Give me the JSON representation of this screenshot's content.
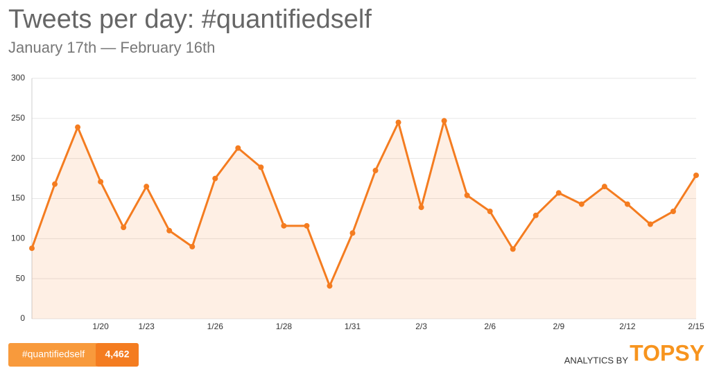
{
  "chart_data": {
    "type": "area",
    "title": "Tweets per day: #quantifiedself",
    "subtitle": "January 17th — February 16th",
    "categories": [
      null,
      null,
      null,
      "1/20",
      null,
      "1/23",
      null,
      null,
      "1/26",
      null,
      null,
      "1/28",
      null,
      null,
      "1/31",
      null,
      null,
      "2/3",
      null,
      null,
      "2/6",
      null,
      null,
      "2/9",
      null,
      null,
      "2/12",
      null,
      null,
      "2/15"
    ],
    "series": [
      {
        "name": "#quantifiedself",
        "color": "#f47c20",
        "values": [
          88,
          168,
          239,
          171,
          114,
          165,
          110,
          90,
          175,
          213,
          189,
          116,
          116,
          41,
          107,
          185,
          245,
          139,
          247,
          154,
          134,
          87,
          129,
          157,
          143,
          165,
          143,
          118,
          134,
          179
        ]
      }
    ],
    "total": {
      "value": 4462,
      "label": "4,462"
    },
    "ylim": [
      0,
      300
    ],
    "yticks": [
      0,
      50,
      100,
      150,
      200,
      250,
      300
    ],
    "grid": true,
    "branding": {
      "prefix": "ANALYTICS BY",
      "name": "TOPSY"
    }
  }
}
